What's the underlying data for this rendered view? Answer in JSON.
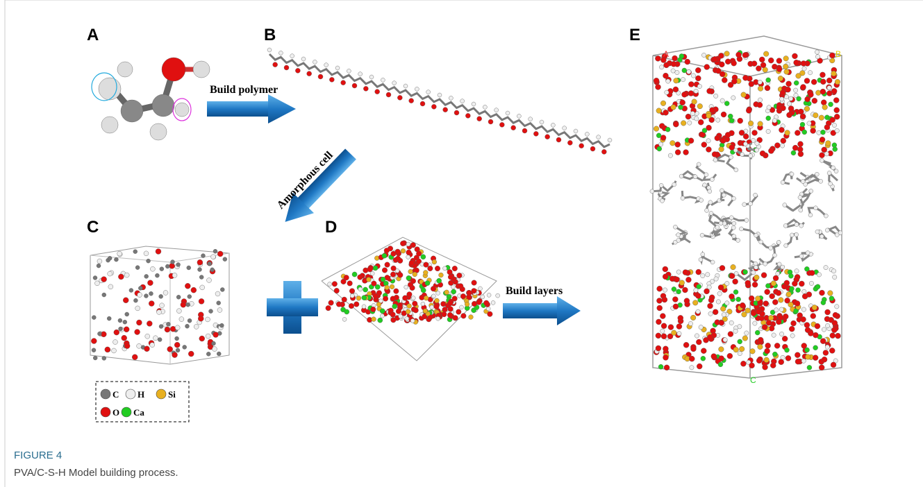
{
  "panels": {
    "a": "A",
    "b": "B",
    "c": "C",
    "d": "D",
    "e": "E"
  },
  "arrows": {
    "build_polymer": "Build polymer",
    "amorphous_cell": "Amorphous cell",
    "build_layers": "Build layers"
  },
  "cell_axes": {
    "a": "A",
    "b": "B",
    "c": "C"
  },
  "legend": [
    "C",
    "H",
    "Si",
    "O",
    "Ca"
  ],
  "caption": {
    "label": "FIGURE 4",
    "text": "PVA/C-S-H Model building process."
  }
}
